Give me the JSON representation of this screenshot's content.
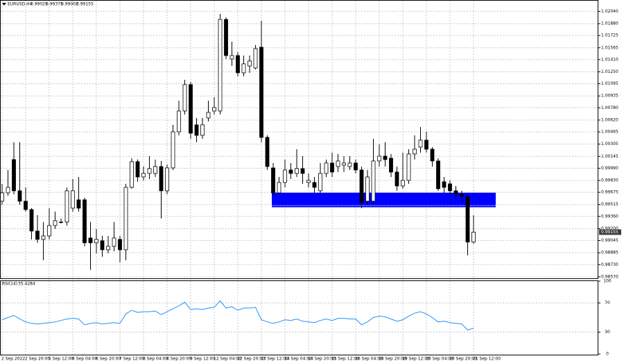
{
  "chart_data": [
    {
      "type": "candlestick",
      "symbol": "EURUSD,H4",
      "categories": [
        "2 Sep 2022",
        null,
        null,
        null,
        "2 Sep 20:00",
        null,
        null,
        null,
        "5 Sep 12:00",
        null,
        null,
        null,
        "6 Sep 04:00",
        null,
        null,
        null,
        "6 Sep 20:00",
        null,
        null,
        null,
        "7 Sep 12:00",
        null,
        null,
        null,
        "8 Sep 04:00",
        null,
        null,
        null,
        "8 Sep 20:00",
        null,
        null,
        null,
        "9 Sep 12:00",
        null,
        null,
        null,
        "12 Sep 04:00",
        null,
        null,
        null,
        "12 Sep 20:00",
        null,
        null,
        null,
        "13 Sep 12:00",
        null,
        null,
        null,
        "14 Sep 04:00",
        null,
        null,
        null,
        "14 Sep 20:00",
        null,
        null,
        null,
        "15 Sep 12:00",
        null,
        null,
        null,
        "16 Sep 04:00",
        null,
        null,
        null,
        "16 Sep 20:00",
        null,
        null,
        null,
        "19 Sep 12:00",
        null,
        null,
        null,
        "20 Sep 04:00",
        null,
        null,
        null,
        "20 Sep 20:00",
        null,
        null,
        null,
        "21 Sep 12:00"
      ],
      "open": [
        0.99559,
        0.99668,
        1.00103,
        0.99695,
        0.99559,
        0.9945,
        0.99169,
        0.9906,
        0.99105,
        0.99241,
        0.99287,
        0.99287,
        0.99468,
        0.99577,
        0.99577,
        0.99078,
        0.99015,
        0.99042,
        0.98924,
        0.98969,
        0.9906,
        0.98924,
        0.9974,
        1.00076,
        0.99876,
        0.99922,
        0.99922,
        1.00012,
        0.99695,
        0.99994,
        1.00466,
        1.00738,
        1.01083,
        1.00557,
        1.0042,
        1.00647,
        1.00738,
        1.00738,
        1.01935,
        1.01418,
        1.01463,
        1.01237,
        1.01327,
        1.013,
        1.01572,
        1.00393,
        0.99994,
        0.99668,
        0.99804,
        0.99967,
        0.99922,
        0.99985,
        0.99804,
        0.99804,
        0.99695,
        0.99922,
        1.00058,
        1.00012,
        1.0003,
        1.00012,
        1.00058,
        0.99967,
        0.99559,
        0.99559,
        1.00085,
        1.00148,
        1.00121,
        0.9994,
        0.99758,
        0.99831,
        1.00176,
        1.00266,
        1.00357,
        1.00239,
        1.00085,
        0.99813,
        0.99786,
        0.99695,
        0.9965,
        0.99622,
        0.99025
      ],
      "high": [
        0.99786,
        0.99967,
        1.0033,
        1.0033,
        0.9974,
        0.99468,
        0.99377,
        0.99287,
        0.99468,
        0.99423,
        0.99332,
        0.9974,
        0.99849,
        0.99876,
        0.99604,
        0.99287,
        0.99196,
        0.99105,
        0.99105,
        0.99287,
        0.99105,
        0.99786,
        1.00121,
        1.00103,
        1.00012,
        1.00148,
        1.00103,
        1.00085,
        1.0004,
        1.00557,
        1.00874,
        1.01146,
        1.01119,
        1.00647,
        1.00647,
        1.00874,
        1.00919,
        1.02008,
        1.01962,
        1.01645,
        1.01509,
        1.01463,
        1.01463,
        1.016,
        1.01917,
        1.0042,
        1.00058,
        0.99876,
        1.00103,
        1.00058,
        1.00239,
        1.00148,
        0.99922,
        0.99876,
        1.00058,
        1.00103,
        1.00194,
        1.00176,
        1.00148,
        1.00148,
        1.00103,
        1.00012,
        0.99967,
        1.00375,
        1.00303,
        1.0033,
        1.00176,
        1.00012,
        1.00194,
        1.00239,
        1.0042,
        1.00529,
        1.00466,
        1.00266,
        1.00121,
        0.99876,
        0.99831,
        0.99758,
        0.99695,
        0.9965,
        0.99375
      ],
      "low": [
        0.99513,
        0.99631,
        0.9965,
        0.99513,
        0.99423,
        0.9906,
        0.99015,
        0.98788,
        0.9906,
        0.99196,
        0.99269,
        0.99241,
        0.99423,
        0.99423,
        0.98969,
        0.98661,
        0.98879,
        0.98833,
        0.98879,
        0.98906,
        0.98761,
        0.98788,
        0.99722,
        0.99813,
        0.99831,
        0.99849,
        0.99876,
        0.99332,
        0.9965,
        0.99967,
        1.0042,
        1.00693,
        1.00375,
        1.0033,
        1.00375,
        1.00602,
        1.00693,
        1.00693,
        1.01418,
        1.01327,
        1.01191,
        1.01191,
        1.01237,
        1.01282,
        1.0033,
        0.99967,
        0.99631,
        0.9965,
        0.9974,
        0.99849,
        0.99876,
        0.99786,
        0.9974,
        0.99668,
        0.9965,
        0.99876,
        0.99876,
        0.9994,
        0.9994,
        0.99967,
        0.99922,
        0.99468,
        0.99513,
        0.99513,
        1.00012,
        1.00012,
        0.99876,
        0.99695,
        0.99722,
        0.99786,
        1.00103,
        1.00194,
        1.00194,
        1.00012,
        0.99695,
        0.99668,
        0.9965,
        0.99604,
        0.99559,
        0.98851,
        0.99002
      ],
      "close": [
        0.99668,
        0.9974,
        0.99695,
        0.99559,
        0.9945,
        0.99169,
        0.9906,
        0.99105,
        0.99241,
        0.99305,
        0.99287,
        0.99695,
        0.99695,
        0.99468,
        0.99015,
        0.99015,
        0.9906,
        0.98924,
        0.98969,
        0.99078,
        0.98924,
        0.9974,
        1.00076,
        0.99876,
        0.99922,
        0.99985,
        1.00012,
        0.99695,
        0.99994,
        1.00466,
        1.00738,
        1.01083,
        1.00448,
        1.0042,
        1.00557,
        1.0072,
        1.00783,
        1.01935,
        1.01463,
        1.01463,
        1.01237,
        1.01355,
        1.01391,
        1.01554,
        1.00393,
        1.00012,
        0.99668,
        0.99804,
        0.99967,
        0.99922,
        0.99985,
        0.99922,
        0.99831,
        0.9974,
        0.99922,
        1.00058,
        0.9994,
        1.00085,
        1.00058,
        1.00058,
        0.99967,
        0.99541,
        0.99876,
        1.00085,
        1.00148,
        1.00103,
        0.9994,
        0.99758,
        0.99831,
        1.00176,
        1.00239,
        1.00357,
        1.00239,
        1.00085,
        0.99722,
        0.9974,
        0.99695,
        0.9965,
        0.99622,
        0.99025,
        0.99155
      ],
      "bull_color": "#ffffff",
      "bear_color": "#000000",
      "zone": {
        "color": "#0000ff",
        "range": [
          0.9948,
          0.9967
        ]
      },
      "ylim": [
        0.9856,
        1.0218
      ],
      "yticks": [
        {
          "value": 1.0204,
          "label": "1.02040"
        },
        {
          "value": 1.0188,
          "label": "1.01880"
        },
        {
          "value": 1.01725,
          "label": "1.01725"
        },
        {
          "value": 1.01565,
          "label": "1.01565"
        },
        {
          "value": 1.0141,
          "label": "1.01410"
        },
        {
          "value": 1.0125,
          "label": "1.01250"
        },
        {
          "value": 1.01095,
          "label": "1.01095"
        },
        {
          "value": 1.00935,
          "label": "1.00935"
        },
        {
          "value": 1.0078,
          "label": "1.00780"
        },
        {
          "value": 1.0062,
          "label": "1.00620"
        },
        {
          "value": 1.00465,
          "label": "1.00465"
        },
        {
          "value": 1.00305,
          "label": "1.00305"
        },
        {
          "value": 1.00145,
          "label": "1.00145"
        },
        {
          "value": 0.9999,
          "label": "0.99990"
        },
        {
          "value": 0.9983,
          "label": "0.99830"
        },
        {
          "value": 0.99675,
          "label": "0.99675"
        },
        {
          "value": 0.99515,
          "label": "0.99515"
        },
        {
          "value": 0.9936,
          "label": "0.99360"
        },
        {
          "value": 0.992,
          "label": "0.99200"
        },
        {
          "value": 0.99045,
          "label": "0.99045"
        },
        {
          "value": 0.98885,
          "label": "0.98885"
        },
        {
          "value": 0.9873,
          "label": "0.98730"
        },
        {
          "value": 0.9857,
          "label": "0.98570"
        }
      ],
      "grid": true
    },
    {
      "type": "line",
      "name": "RSI(14)",
      "color": "#1e90ff",
      "values": [
        47,
        50,
        53,
        48,
        44,
        42,
        41,
        42,
        43,
        44,
        46,
        48,
        49,
        48,
        40,
        42,
        43,
        41,
        42,
        43,
        42,
        55,
        60,
        57,
        58,
        58,
        59,
        54,
        58,
        62,
        66,
        71,
        61,
        62,
        61,
        63,
        64,
        73,
        63,
        65,
        60,
        63,
        63,
        64,
        47,
        44,
        42,
        44,
        47,
        46,
        48,
        45,
        44,
        43,
        46,
        48,
        46,
        49,
        49,
        48,
        48,
        40,
        44,
        50,
        52,
        51,
        48,
        45,
        47,
        52,
        56,
        58,
        55,
        50,
        44,
        45,
        43,
        42,
        41,
        33,
        35.4284
      ],
      "ylim": [
        0,
        100
      ],
      "yticks": [
        100,
        70,
        30,
        0
      ],
      "grid": true
    }
  ]
}
